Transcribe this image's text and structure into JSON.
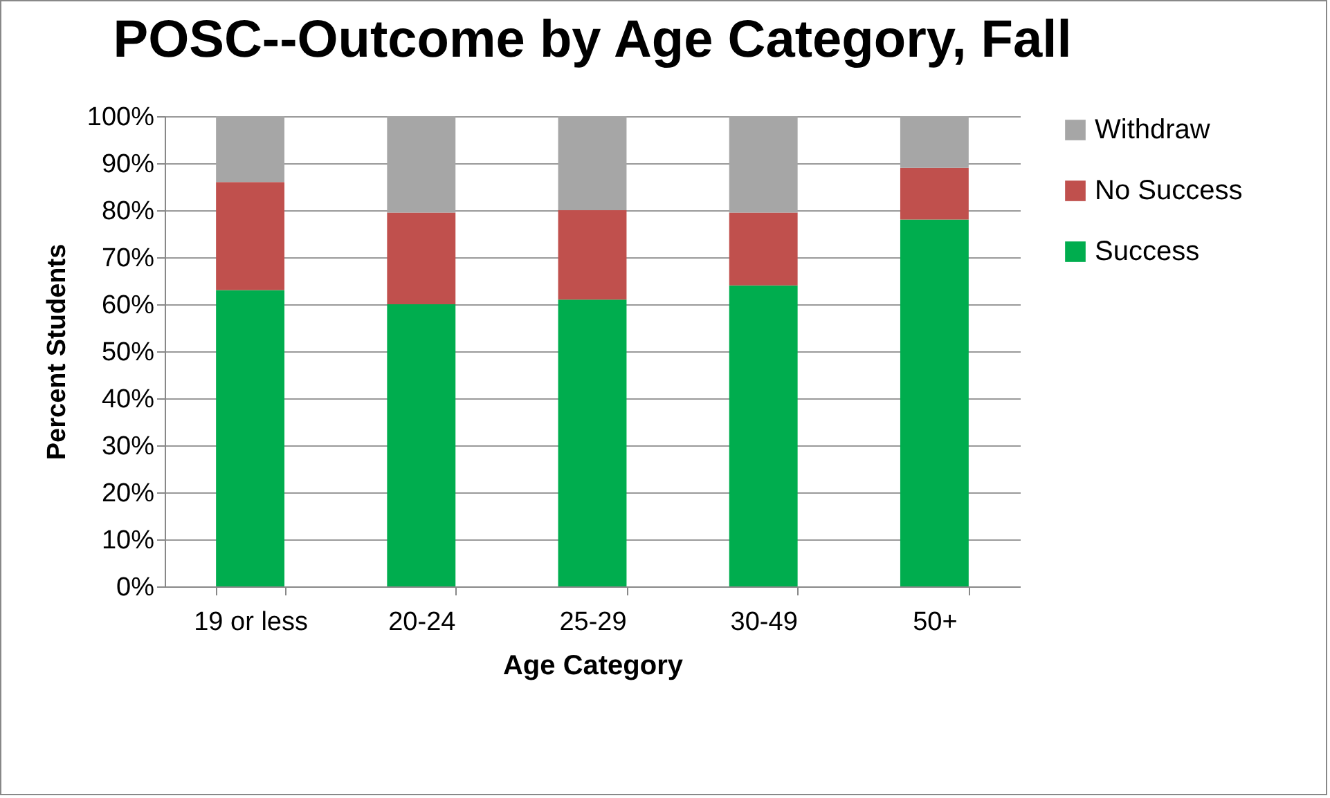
{
  "chart_data": {
    "type": "bar",
    "title": "POSC--Outcome by Age Category, Fall",
    "xlabel": "Age Category",
    "ylabel": "Percent Students",
    "categories": [
      "19 or less",
      "20-24",
      "25-29",
      "30-49",
      "50+"
    ],
    "stacked": true,
    "series": [
      {
        "name": "Success",
        "color": "#00ad4e",
        "values": [
          63,
          60,
          61,
          64,
          78
        ]
      },
      {
        "name": "No Success",
        "color": "#c0504d",
        "values": [
          23,
          19.5,
          19,
          15.5,
          11
        ]
      },
      {
        "name": "Withdraw",
        "color": "#a6a6a6",
        "values": [
          14,
          20.5,
          20,
          20.5,
          11
        ]
      }
    ],
    "ylim": [
      0,
      100
    ],
    "yticks": [
      {
        "value": 0,
        "label": "0%"
      },
      {
        "value": 10,
        "label": "10%"
      },
      {
        "value": 20,
        "label": "20%"
      },
      {
        "value": 30,
        "label": "30%"
      },
      {
        "value": 40,
        "label": "40%"
      },
      {
        "value": 50,
        "label": "50%"
      },
      {
        "value": 60,
        "label": "60%"
      },
      {
        "value": 70,
        "label": "70%"
      },
      {
        "value": 80,
        "label": "80%"
      },
      {
        "value": 90,
        "label": "90%"
      },
      {
        "value": 100,
        "label": "100%"
      }
    ],
    "grid": "y",
    "legend": "right"
  }
}
